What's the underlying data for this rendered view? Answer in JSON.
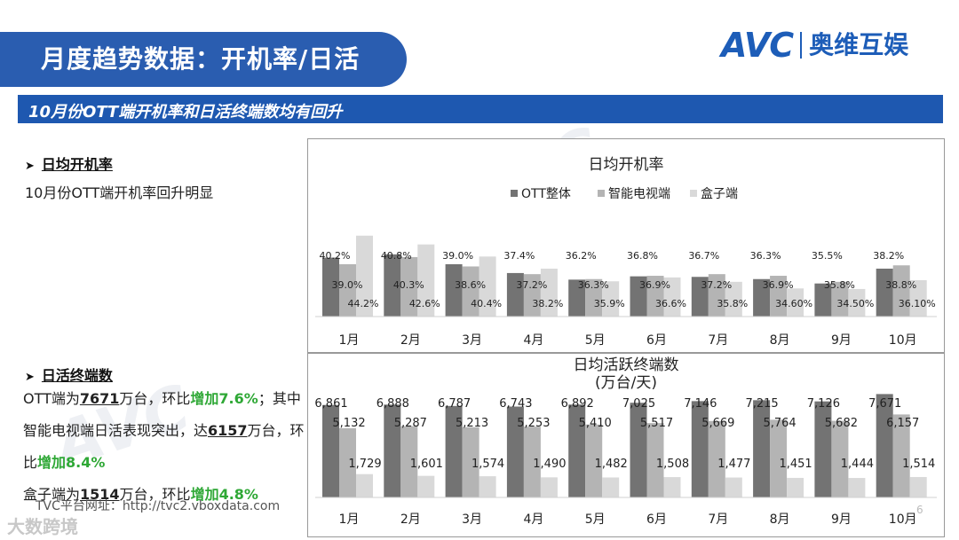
{
  "header": {
    "title": "月度趋势数据：开机率/日活",
    "logo_text": "AVC",
    "logo_cn": "奥维互娱",
    "subtitle": "10月份OTT端开机率和日活终端数均有回升"
  },
  "section1": {
    "heading": "日均开机率",
    "note": "10月份OTT端开机率回升明显"
  },
  "section2": {
    "heading": "日活终端数",
    "p1_pre": "OTT端为",
    "p1_num": "7671",
    "p1_mid": "万台，环比",
    "p1_grn": "增加7.6%",
    "p1_post": "；其中智能电视端日活表现突出，达",
    "p2_num": "6157",
    "p2_mid": "万台，环比",
    "p2_grn": "增加8.4%",
    "p3_pre": "盒子端为",
    "p3_num": "1514",
    "p3_mid": "万台，环比",
    "p3_grn": "增加4.8%"
  },
  "footer": {
    "url_text": "TVC平台网址：http://tvc2.vboxdata.com",
    "page": "6",
    "watermark": "大数跨境"
  },
  "colors": {
    "title_blue": "#2a5db0",
    "series_dark": "#737373",
    "series_mid": "#b4b4b4",
    "series_light": "#d9d9d9",
    "highlight_green": "#2fa836"
  },
  "chart_data": [
    {
      "type": "bar",
      "title": "日均开机率",
      "categories": [
        "1月",
        "2月",
        "3月",
        "4月",
        "5月",
        "6月",
        "7月",
        "8月",
        "9月",
        "10月"
      ],
      "series": [
        {
          "name": "OTT整体",
          "values": [
            40.2,
            40.8,
            39.0,
            37.4,
            36.2,
            36.8,
            36.7,
            36.3,
            35.5,
            38.2
          ],
          "labels": [
            "40.2%",
            "40.8%",
            "39.0%",
            "37.4%",
            "36.2%",
            "36.8%",
            "36.7%",
            "36.3%",
            "35.5%",
            "38.2%"
          ]
        },
        {
          "name": "智能电视端",
          "values": [
            39.0,
            40.3,
            38.6,
            37.2,
            36.3,
            36.9,
            37.2,
            36.9,
            35.8,
            38.8
          ],
          "labels": [
            "39.0%",
            "40.3%",
            "38.6%",
            "37.2%",
            "36.3%",
            "36.9%",
            "37.2%",
            "36.9%",
            "35.8%",
            "38.8%"
          ]
        },
        {
          "name": "盒子端",
          "values": [
            44.2,
            42.6,
            40.4,
            38.2,
            35.9,
            36.6,
            35.8,
            34.6,
            34.5,
            36.1
          ],
          "labels": [
            "44.2%",
            "42.6%",
            "40.4%",
            "38.2%",
            "35.9%",
            "36.6%",
            "35.8%",
            "34.60%",
            "34.50%",
            "36.10%"
          ]
        }
      ],
      "legend": "top"
    },
    {
      "type": "bar",
      "title": "日均活跃终端数",
      "title_unit": "(万台/天)",
      "categories": [
        "1月",
        "2月",
        "3月",
        "4月",
        "5月",
        "6月",
        "7月",
        "8月",
        "9月",
        "10月"
      ],
      "series": [
        {
          "values": [
            6861,
            6888,
            6787,
            6743,
            6892,
            7025,
            7146,
            7215,
            7126,
            7671
          ],
          "labels": [
            "6,861",
            "6,888",
            "6,787",
            "6,743",
            "6,892",
            "7,025",
            "7,146",
            "7,215",
            "7,126",
            "7,671"
          ]
        },
        {
          "values": [
            5132,
            5287,
            5213,
            5253,
            5410,
            5517,
            5669,
            5764,
            5682,
            6157
          ],
          "labels": [
            "5,132",
            "5,287",
            "5,213",
            "5,253",
            "5,410",
            "5,517",
            "5,669",
            "5,764",
            "5,682",
            "6,157"
          ]
        },
        {
          "values": [
            1729,
            1601,
            1574,
            1490,
            1482,
            1508,
            1477,
            1451,
            1444,
            1514
          ],
          "labels": [
            "1,729",
            "1,601",
            "1,574",
            "1,490",
            "1,482",
            "1,508",
            "1,477",
            "1,451",
            "1,444",
            "1,514"
          ]
        }
      ]
    }
  ]
}
